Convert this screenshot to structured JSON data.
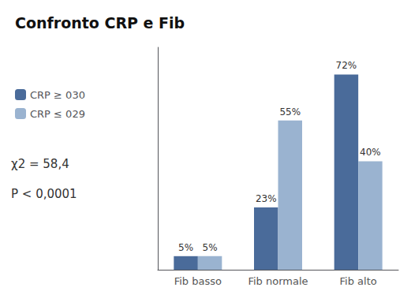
{
  "chart_data": {
    "type": "bar",
    "title": "Confronto CRP e Fib",
    "categories": [
      "Fib basso",
      "Fib normale",
      "Fib alto"
    ],
    "series": [
      {
        "name": "CRP ≥ 030",
        "color": "#4a6b9a",
        "values": [
          5,
          23,
          72
        ],
        "value_labels": [
          "5%",
          "23%",
          "72%"
        ]
      },
      {
        "name": "CRP ≤ 029",
        "color": "#9ab3d0",
        "values": [
          5,
          55,
          40
        ],
        "value_labels": [
          "5%",
          "55%",
          "40%"
        ]
      }
    ],
    "annotations": [
      "χ2 = 58,4",
      "P < 0,0001"
    ],
    "ylim": [
      0,
      82
    ],
    "grid": false,
    "legend": "upper left",
    "data_labels": true,
    "tick_labels": "x"
  }
}
